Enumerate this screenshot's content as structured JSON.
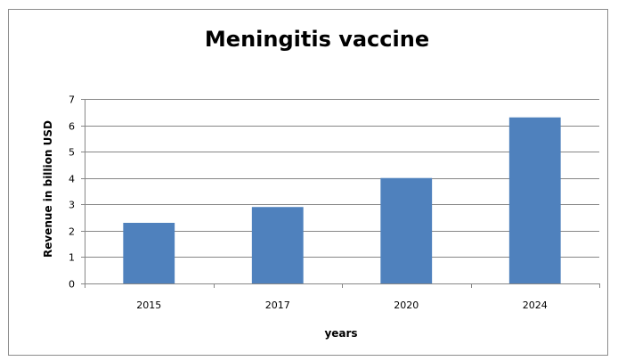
{
  "chart_data": {
    "type": "bar",
    "title": "Meningitis vaccine",
    "xlabel": "years",
    "ylabel": "Revenue in billion USD",
    "categories": [
      "2015",
      "2017",
      "2020",
      "2024"
    ],
    "values": [
      2.3,
      2.9,
      4.0,
      6.3
    ],
    "ylim": [
      0,
      7
    ],
    "yticks": [
      "0",
      "1",
      "2",
      "3",
      "4",
      "5",
      "6",
      "7"
    ],
    "grid": true,
    "legend": "none",
    "bar_color": "#4F81BD",
    "grid_color": "#878787"
  }
}
